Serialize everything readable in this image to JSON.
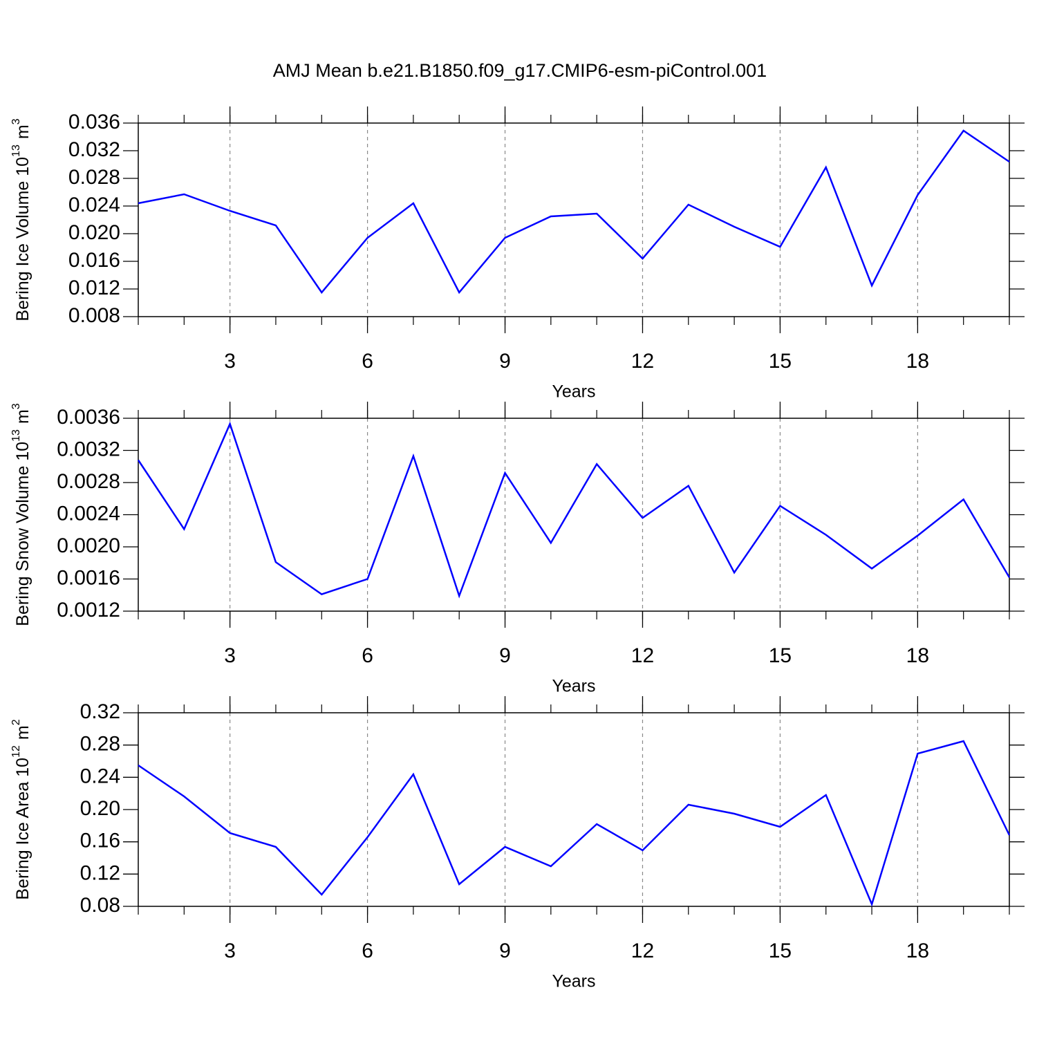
{
  "chart_data": [
    {
      "type": "line",
      "title": "AMJ Mean b.e21.B1850.f09_g17.CMIP6-esm-piControl.001",
      "xlabel": "Years",
      "ylabel": {
        "text": "Bering Ice Volume 10",
        "sup": "13",
        "unit": "m",
        "unit_sup": "3"
      },
      "x": [
        1,
        2,
        3,
        4,
        5,
        6,
        7,
        8,
        9,
        10,
        11,
        12,
        13,
        14,
        15,
        16,
        17,
        18,
        19,
        20
      ],
      "values": [
        0.0244,
        0.0257,
        0.0233,
        0.0212,
        0.0115,
        0.0194,
        0.0244,
        0.0115,
        0.0194,
        0.0225,
        0.0229,
        0.0164,
        0.0242,
        0.021,
        0.0181,
        0.0296,
        0.0125,
        0.0256,
        0.0349,
        0.0304
      ],
      "color": "#0000ff",
      "xlim": [
        1,
        20
      ],
      "xticks": [
        3,
        6,
        9,
        12,
        15,
        18
      ],
      "ylim": [
        0.008,
        0.036
      ],
      "yticks": [
        0.008,
        0.012,
        0.016,
        {
          "value": 0.02,
          "label": "0.020"
        },
        0.024,
        0.028,
        0.032,
        0.036
      ],
      "grid": "x"
    },
    {
      "type": "line",
      "xlabel": "Years",
      "ylabel": {
        "text": "Bering Snow Volume 10",
        "sup": "13",
        "unit": "m",
        "unit_sup": "3"
      },
      "x": [
        1,
        2,
        3,
        4,
        5,
        6,
        7,
        8,
        9,
        10,
        11,
        12,
        13,
        14,
        15,
        16,
        17,
        18,
        19,
        20
      ],
      "values": [
        0.00308,
        0.00222,
        0.00353,
        0.00181,
        0.00141,
        0.0016,
        0.00313,
        0.00139,
        0.00292,
        0.00205,
        0.00303,
        0.00236,
        0.00276,
        0.00168,
        0.00251,
        0.00215,
        0.00173,
        0.00214,
        0.00259,
        0.00162
      ],
      "color": "#0000ff",
      "xlim": [
        1,
        20
      ],
      "xticks": [
        3,
        6,
        9,
        12,
        15,
        18
      ],
      "ylim": [
        0.0012,
        0.0036
      ],
      "yticks": [
        0.0012,
        0.0016,
        {
          "value": 0.002,
          "label": "0.0020"
        },
        0.0024,
        0.0028,
        0.0032,
        0.0036
      ],
      "grid": "x"
    },
    {
      "type": "line",
      "xlabel": "Years",
      "ylabel": {
        "text": "Bering Ice Area 10",
        "sup": "12",
        "unit": "m",
        "unit_sup": "2"
      },
      "x": [
        1,
        2,
        3,
        4,
        5,
        6,
        7,
        8,
        9,
        10,
        11,
        12,
        13,
        14,
        15,
        16,
        17,
        18,
        19,
        20
      ],
      "values": [
        0.2549,
        0.2163,
        0.1709,
        0.1537,
        0.0946,
        0.1657,
        0.2437,
        0.1074,
        0.1537,
        0.1297,
        0.182,
        0.1494,
        0.206,
        0.1949,
        0.1786,
        0.218,
        0.0826,
        0.2694,
        0.2849,
        0.1683
      ],
      "color": "#0000ff",
      "xlim": [
        1,
        20
      ],
      "xticks": [
        3,
        6,
        9,
        12,
        15,
        18
      ],
      "ylim": [
        0.08,
        0.32
      ],
      "yticks": [
        0.08,
        0.12,
        0.16,
        {
          "value": 0.2,
          "label": "0.20"
        },
        0.24,
        0.28,
        0.32
      ],
      "grid": "x"
    }
  ]
}
